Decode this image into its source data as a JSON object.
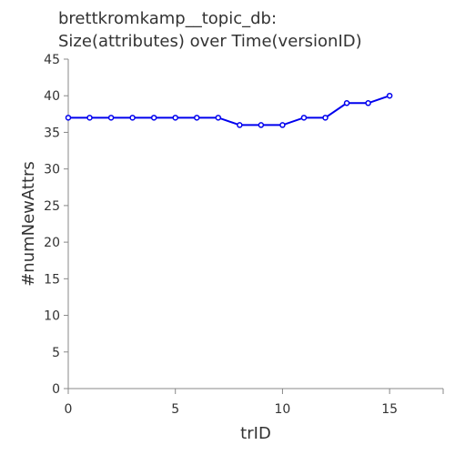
{
  "chart_data": {
    "type": "line",
    "title_lines": [
      "brettkromkamp__topic_db:",
      "Size(attributes) over Time(versionID)"
    ],
    "xlabel": "trID",
    "ylabel": "#numNewAttrs",
    "xlim": [
      0,
      17.5
    ],
    "ylim": [
      0,
      45
    ],
    "xticks": [
      0,
      5,
      10,
      15
    ],
    "yticks": [
      0,
      5,
      10,
      15,
      20,
      25,
      30,
      35,
      40,
      45
    ],
    "grid": false,
    "line_color": "#0000ee",
    "series": [
      {
        "x": [
          0,
          1,
          2,
          3,
          4,
          5,
          6,
          7,
          8,
          9,
          10,
          11,
          12,
          13,
          14,
          15
        ],
        "y": [
          37,
          37,
          37,
          37,
          37,
          37,
          37,
          37,
          36,
          36,
          36,
          37,
          37,
          39,
          39,
          40
        ]
      }
    ]
  }
}
